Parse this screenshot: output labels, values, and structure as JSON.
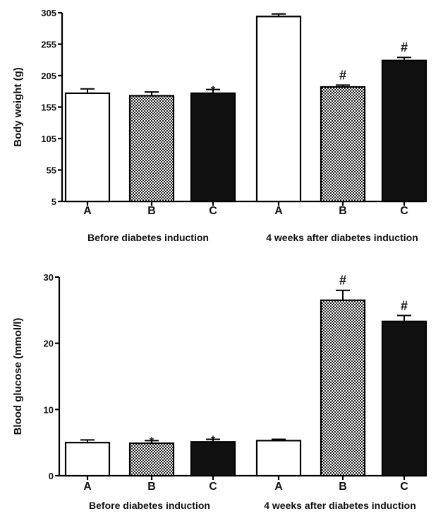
{
  "chart_data": [
    {
      "type": "bar",
      "ylabel": "Body weight (g)",
      "ylim": [
        5,
        305
      ],
      "yticks": [
        5,
        55,
        105,
        155,
        205,
        255,
        305
      ],
      "groups": [
        {
          "label": "Before diabetes induction",
          "bars": [
            {
              "category": "A",
              "value": 177,
              "error": 7,
              "fill": "white",
              "marker": ""
            },
            {
              "category": "B",
              "value": 173,
              "error": 6,
              "fill": "checker",
              "marker": ""
            },
            {
              "category": "C",
              "value": 177,
              "error": 6,
              "fill": "black",
              "marker": "*"
            }
          ]
        },
        {
          "label": "4 weeks after diabetes induction",
          "bars": [
            {
              "category": "A",
              "value": 299,
              "error": 4,
              "fill": "white",
              "marker": ""
            },
            {
              "category": "B",
              "value": 187,
              "error": 3,
              "fill": "checker",
              "marker": "#"
            },
            {
              "category": "C",
              "value": 229,
              "error": 5,
              "fill": "black",
              "marker": "#"
            }
          ]
        }
      ]
    },
    {
      "type": "bar",
      "ylabel": "Blood glucose (mmol/l)",
      "ylim": [
        0,
        30
      ],
      "yticks": [
        0,
        10,
        20,
        30
      ],
      "groups": [
        {
          "label": "Before diabetes induction",
          "bars": [
            {
              "category": "A",
              "value": 5.0,
              "error": 0.4,
              "fill": "white",
              "marker": ""
            },
            {
              "category": "B",
              "value": 4.9,
              "error": 0.4,
              "fill": "checker",
              "marker": "*"
            },
            {
              "category": "C",
              "value": 5.1,
              "error": 0.4,
              "fill": "black",
              "marker": "*"
            }
          ]
        },
        {
          "label": "4 weeks after diabetes induction",
          "bars": [
            {
              "category": "A",
              "value": 5.3,
              "error": 0.2,
              "fill": "white",
              "marker": ""
            },
            {
              "category": "B",
              "value": 26.5,
              "error": 1.5,
              "fill": "checker",
              "marker": "#"
            },
            {
              "category": "C",
              "value": 23.3,
              "error": 0.9,
              "fill": "black",
              "marker": "#"
            }
          ]
        }
      ]
    }
  ]
}
